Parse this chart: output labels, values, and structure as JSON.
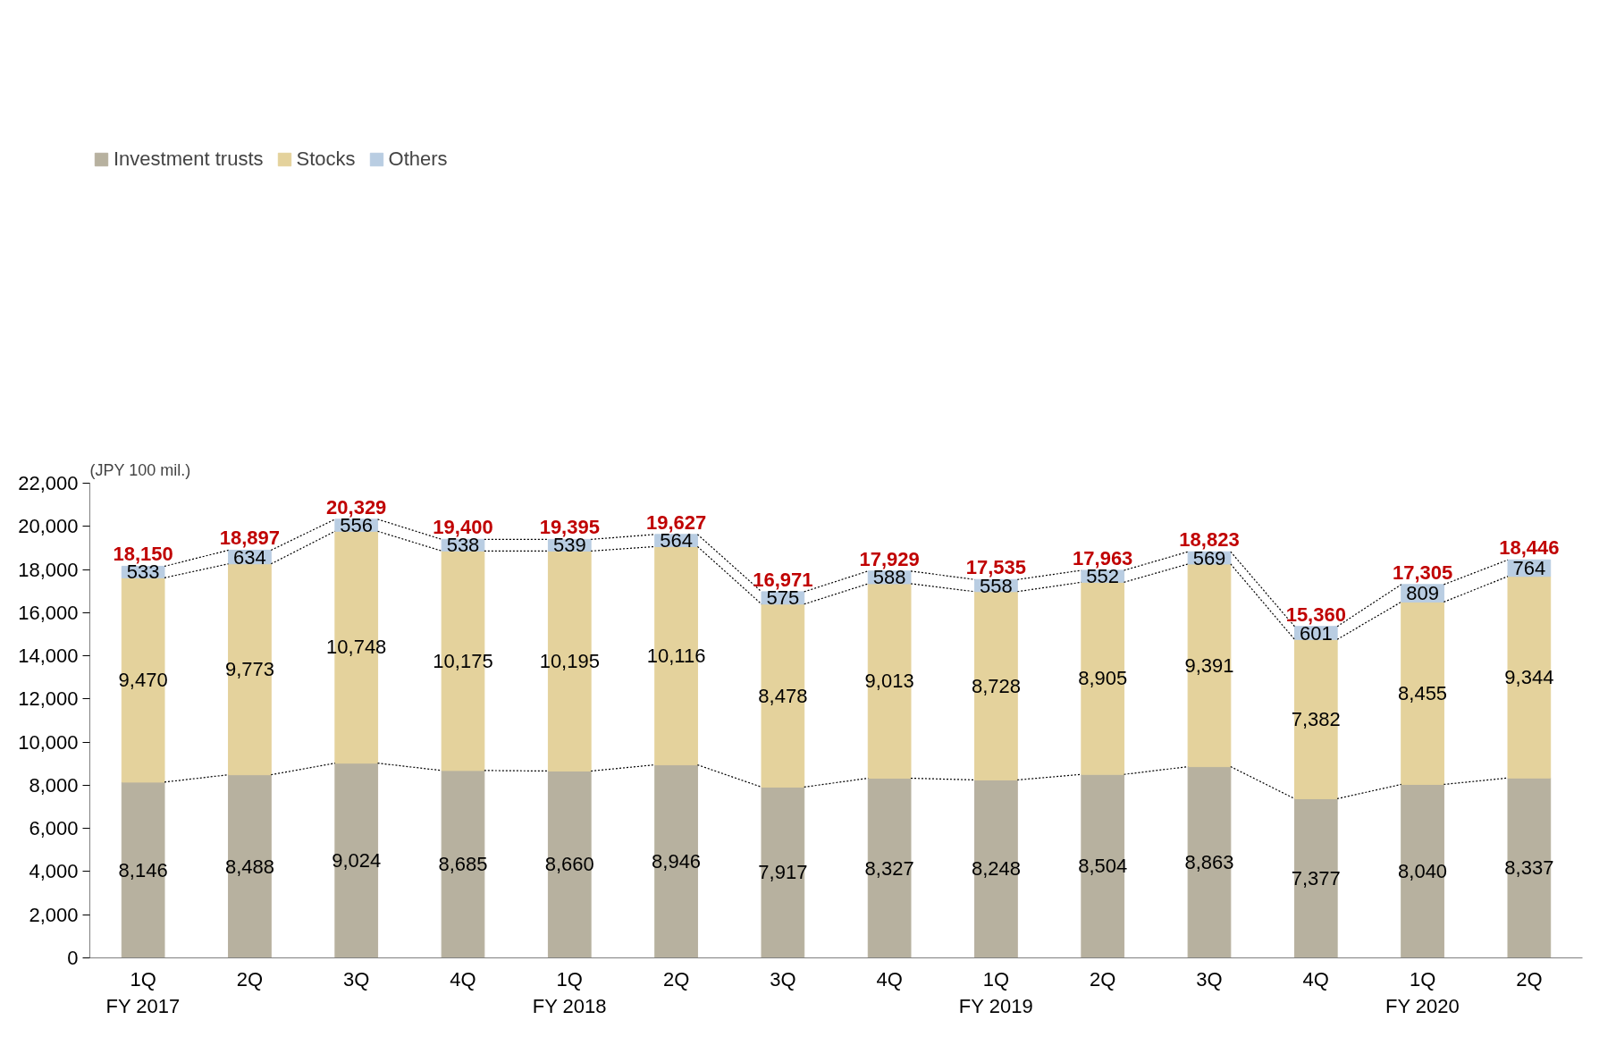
{
  "chart_data": {
    "type": "bar",
    "stacked": true,
    "ylabel": "(JPY 100 mil.)",
    "categories": [
      "1Q\nFY 2017",
      "2Q",
      "3Q",
      "4Q",
      "1Q\nFY 2018",
      "2Q",
      "3Q",
      "4Q",
      "1Q\nFY 2019",
      "2Q",
      "3Q",
      "4Q",
      "1Q\nFY 2020",
      "2Q"
    ],
    "series": [
      {
        "name": "Investment trusts",
        "color": "#b7b19f",
        "values": [
          8146,
          8488,
          9024,
          8685,
          8660,
          8946,
          7917,
          8327,
          8248,
          8504,
          8863,
          7377,
          8040,
          8337
        ],
        "value_labels": [
          "8,146",
          "8,488",
          "9,024",
          "8,685",
          "8,660",
          "8,946",
          "7,917",
          "8,327",
          "8,248",
          "8,504",
          "8,863",
          "7,377",
          "8,040",
          "8,337"
        ]
      },
      {
        "name": "Stocks",
        "color": "#e4d29c",
        "values": [
          9470,
          9773,
          10748,
          10175,
          10195,
          10116,
          8478,
          9013,
          8728,
          8905,
          9391,
          7382,
          8455,
          9344
        ],
        "value_labels": [
          "9,470",
          "9,773",
          "10,748",
          "10,175",
          "10,195",
          "10,116",
          "8,478",
          "9,013",
          "8,728",
          "8,905",
          "9,391",
          "7,382",
          "8,455",
          "9,344"
        ]
      },
      {
        "name": "Others",
        "color": "#b9cde2",
        "values": [
          533,
          634,
          556,
          538,
          539,
          564,
          575,
          588,
          558,
          552,
          569,
          601,
          809,
          764
        ],
        "value_labels": [
          "533",
          "634",
          "556",
          "538",
          "539",
          "564",
          "575",
          "588",
          "558",
          "552",
          "569",
          "601",
          "809",
          "764"
        ]
      }
    ],
    "totals": [
      "18,150",
      "18,897",
      "20,329",
      "19,400",
      "19,395",
      "19,627",
      "16,971",
      "17,929",
      "17,535",
      "17,963",
      "18,823",
      "15,360",
      "17,305",
      "18,446"
    ],
    "ylim": [
      0,
      22000
    ],
    "yticks": [
      0,
      {
        "value": 2000,
        "label": "2,000"
      },
      {
        "value": 4000,
        "label": "4,000"
      },
      {
        "value": 6000,
        "label": "6,000"
      },
      {
        "value": 8000,
        "label": "8,000"
      },
      {
        "value": 10000,
        "label": "10,000"
      },
      {
        "value": 12000,
        "label": "12,000"
      },
      {
        "value": 14000,
        "label": "14,000"
      },
      {
        "value": 16000,
        "label": "16,000"
      },
      {
        "value": 18000,
        "label": "18,000"
      },
      {
        "value": 20000,
        "label": "20,000"
      },
      {
        "value": 22000,
        "label": "22,000"
      }
    ],
    "grid": false,
    "legend": "top left"
  }
}
